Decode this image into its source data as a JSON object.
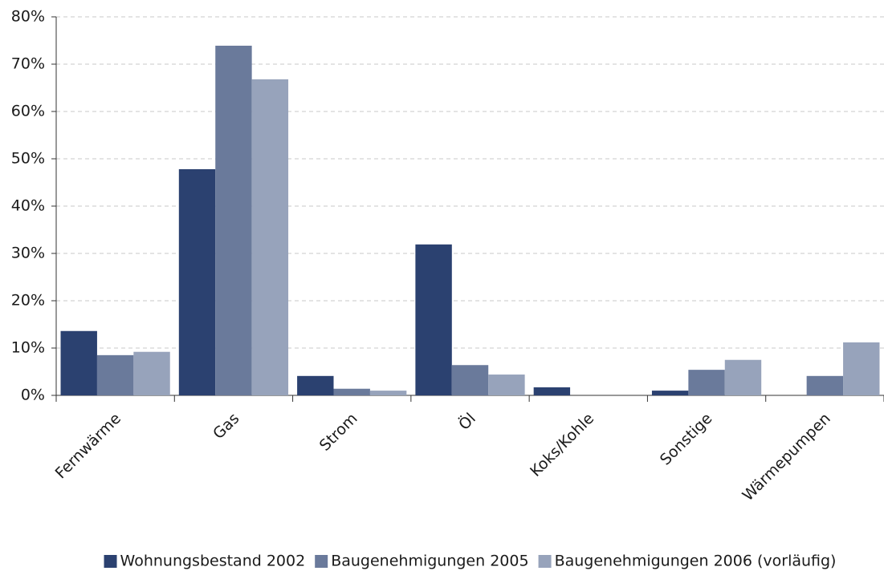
{
  "chart_data": {
    "type": "bar",
    "categories": [
      "Fernwärme",
      "Gas",
      "Strom",
      "Öl",
      "Koks/Kohle",
      "Sonstige",
      "Wärmepumpen"
    ],
    "series": [
      {
        "name": "Wohnungsbestand 2002",
        "color": "#2b4170",
        "values": [
          13.6,
          47.8,
          4.1,
          31.9,
          1.7,
          1.0,
          0
        ]
      },
      {
        "name": "Baugenehmigungen 2005",
        "color": "#6a7a9b",
        "values": [
          8.5,
          73.9,
          1.4,
          6.4,
          0,
          5.4,
          4.1
        ]
      },
      {
        "name": "Baugenehmigungen 2006 (vorläufig)",
        "color": "#97a3bb",
        "values": [
          9.2,
          66.8,
          1.0,
          4.4,
          0,
          7.5,
          11.2
        ]
      }
    ],
    "ylim": [
      0,
      80
    ],
    "yticks": [
      {
        "value": 0,
        "label": "0%"
      },
      {
        "value": 10,
        "label": "10%"
      },
      {
        "value": 20,
        "label": "20%"
      },
      {
        "value": 30,
        "label": "30%"
      },
      {
        "value": 40,
        "label": "40%"
      },
      {
        "value": 50,
        "label": "50%"
      },
      {
        "value": 60,
        "label": "60%"
      },
      {
        "value": 70,
        "label": "70%"
      },
      {
        "value": 80,
        "label": "80%"
      }
    ],
    "grid": true,
    "legend": "bottom"
  }
}
